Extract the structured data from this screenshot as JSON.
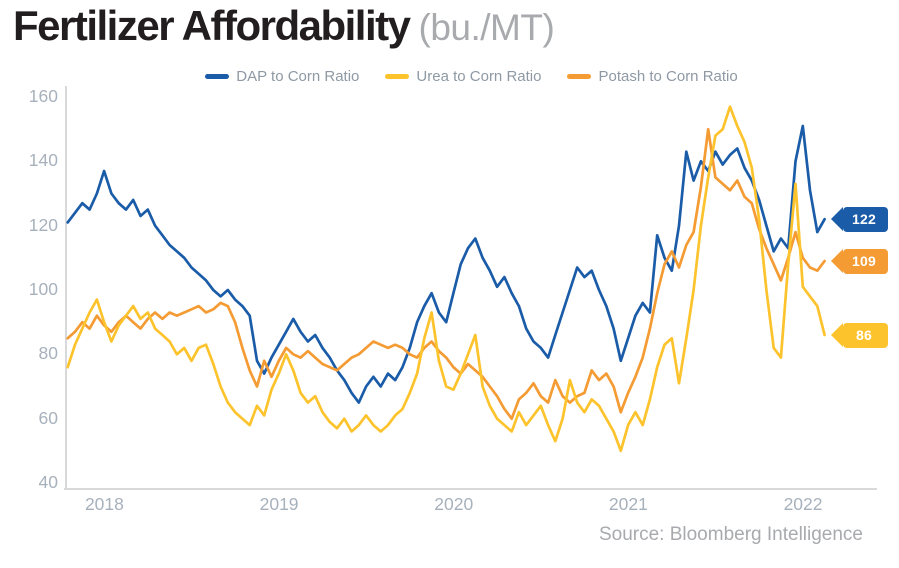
{
  "title": {
    "main": "Fertilizer Affordability",
    "units": "(bu./MT)"
  },
  "source": "Source: Bloomberg Intelligence",
  "colors": {
    "dap": "#1A5CA8",
    "urea": "#FDC32D",
    "potash": "#F49B33",
    "axis_line": "#D7D9DA",
    "tick_text": "#A7B1BC",
    "legend_text": "#8E99A4",
    "title_text": "#221E1F",
    "muted_text": "#A8AAAD",
    "badge_text": "#FFFFFF"
  },
  "chart_data": {
    "type": "line",
    "title": "Fertilizer Affordability",
    "units": "bu./MT",
    "x_start": 2017.79,
    "x_step": 0.0416667,
    "xlim": [
      2017.78,
      2022.16
    ],
    "ylim": [
      40,
      160
    ],
    "yticks": [
      40,
      60,
      80,
      100,
      120,
      140,
      160
    ],
    "xticks": [
      2018,
      2019,
      2020,
      2021,
      2022
    ],
    "grid": false,
    "legend_position": "top",
    "series": [
      {
        "name": "DAP to Corn Ratio",
        "slug": "dap",
        "color_key": "dap",
        "end_label": "122",
        "values": [
          121,
          124,
          127,
          125,
          130,
          137,
          130,
          127,
          125,
          128,
          123,
          125,
          120,
          117,
          114,
          112,
          110,
          107,
          105,
          103,
          100,
          98,
          100,
          97,
          95,
          92,
          78,
          74,
          79,
          83,
          87,
          91,
          87,
          84,
          86,
          82,
          79,
          75,
          72,
          68,
          65,
          70,
          73,
          70,
          74,
          72,
          76,
          82,
          90,
          95,
          99,
          93,
          90,
          99,
          108,
          113,
          116,
          110,
          106,
          101,
          104,
          99,
          95,
          88,
          84,
          82,
          79,
          86,
          93,
          100,
          107,
          104,
          106,
          100,
          95,
          88,
          78,
          85,
          92,
          96,
          93,
          117,
          110,
          106,
          120,
          143,
          134,
          140,
          137,
          143,
          139,
          142,
          144,
          138,
          134,
          128,
          120,
          112,
          116,
          113,
          140,
          151,
          131,
          118,
          122
        ]
      },
      {
        "name": "Urea to Corn Ratio",
        "slug": "urea",
        "color_key": "urea",
        "end_label": "86",
        "values": [
          76,
          83,
          88,
          93,
          97,
          90,
          84,
          89,
          92,
          95,
          91,
          93,
          88,
          86,
          84,
          80,
          82,
          78,
          82,
          83,
          77,
          70,
          65,
          62,
          60,
          58,
          64,
          61,
          69,
          74,
          80,
          75,
          68,
          65,
          67,
          62,
          59,
          57,
          60,
          56,
          58,
          61,
          58,
          56,
          58,
          61,
          63,
          68,
          74,
          85,
          93,
          78,
          70,
          69,
          74,
          80,
          86,
          70,
          64,
          60,
          58,
          56,
          62,
          58,
          61,
          64,
          58,
          53,
          60,
          72,
          65,
          62,
          66,
          64,
          60,
          56,
          50,
          58,
          62,
          58,
          66,
          76,
          83,
          85,
          71,
          85,
          100,
          120,
          135,
          148,
          150,
          157,
          151,
          146,
          138,
          122,
          100,
          82,
          79,
          108,
          133,
          101,
          98,
          95,
          86
        ]
      },
      {
        "name": "Potash to Corn Ratio",
        "slug": "potash",
        "color_key": "potash",
        "end_label": "109",
        "values": [
          85,
          87,
          90,
          88,
          92,
          89,
          87,
          90,
          92,
          90,
          88,
          91,
          93,
          91,
          93,
          92,
          93,
          94,
          95,
          93,
          94,
          96,
          95,
          90,
          82,
          75,
          70,
          78,
          73,
          78,
          82,
          80,
          79,
          81,
          79,
          77,
          76,
          75,
          77,
          79,
          80,
          82,
          84,
          83,
          82,
          83,
          82,
          80,
          79,
          82,
          84,
          81,
          79,
          76,
          74,
          77,
          75,
          73,
          70,
          67,
          63,
          60,
          66,
          68,
          71,
          67,
          65,
          72,
          67,
          65,
          67,
          68,
          75,
          72,
          74,
          70,
          62,
          68,
          73,
          79,
          88,
          99,
          108,
          112,
          107,
          114,
          118,
          132,
          150,
          135,
          133,
          131,
          134,
          129,
          127,
          119,
          113,
          108,
          103,
          110,
          118,
          110,
          107,
          106,
          109
        ]
      }
    ]
  }
}
